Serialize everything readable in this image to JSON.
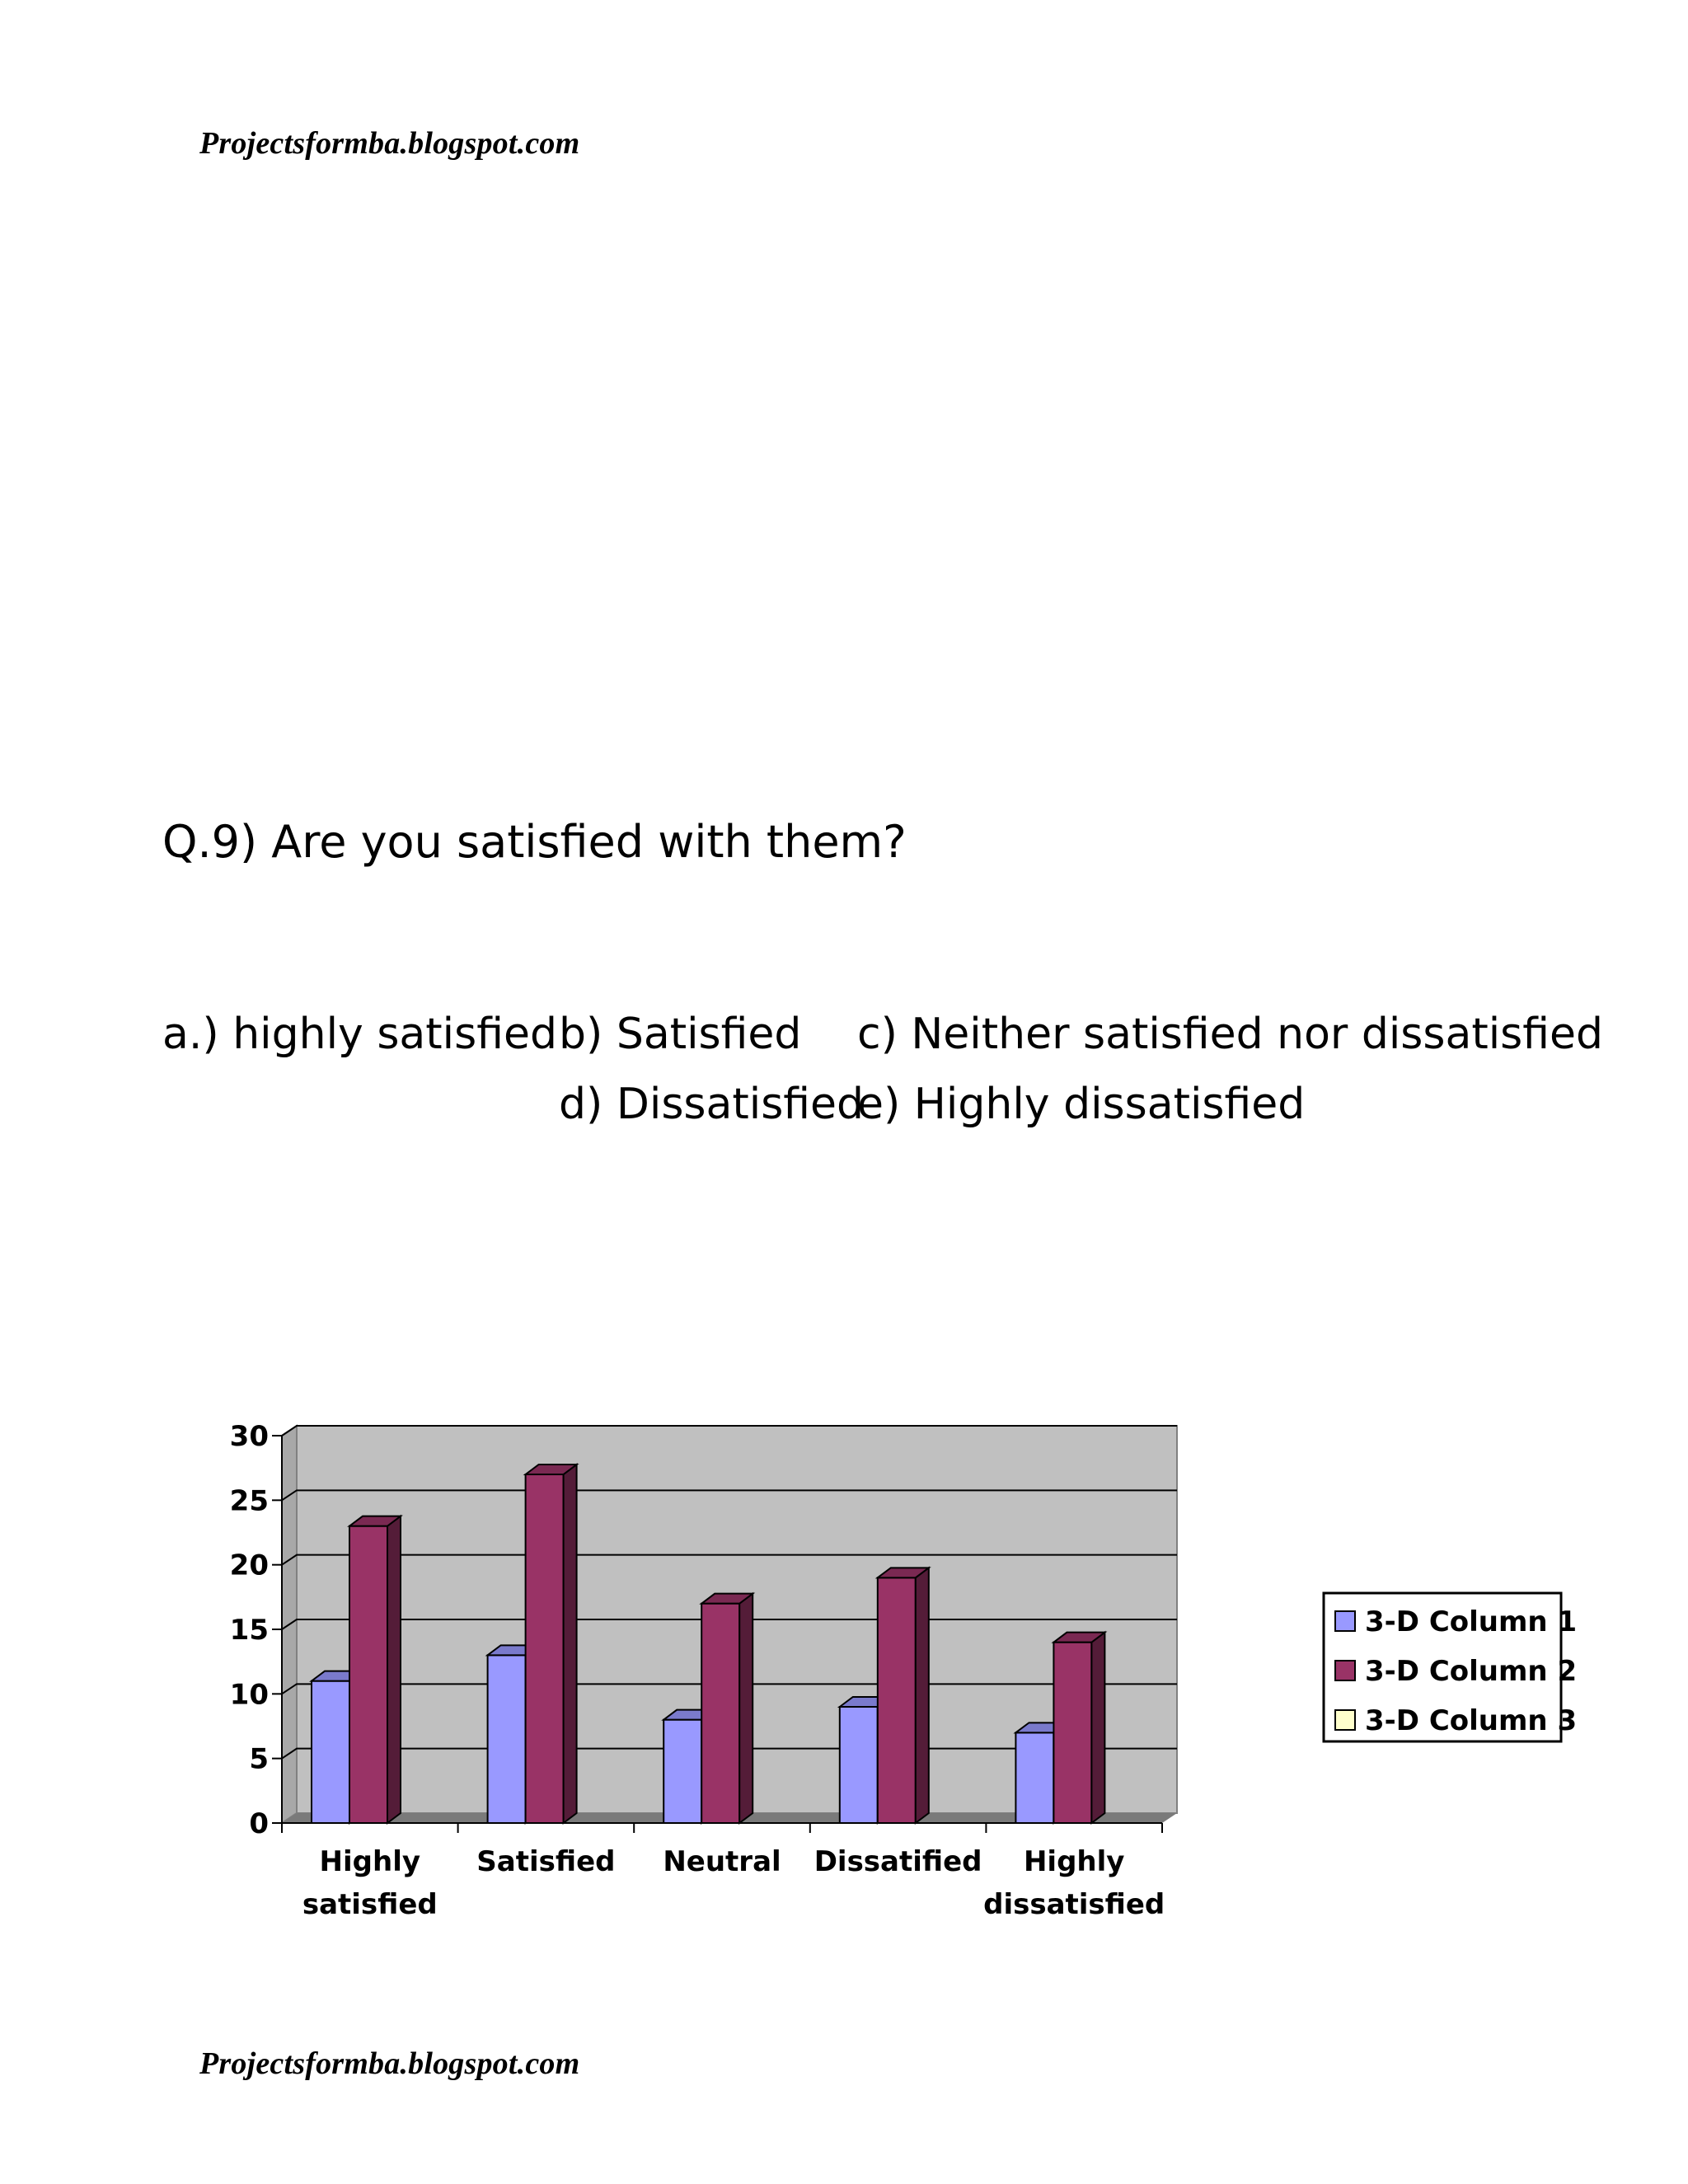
{
  "page": {
    "header": "Projectsformba.blogspot.com",
    "footer": "Projectsformba.blogspot.com",
    "question": "Q.9) Are you satisfied with them?",
    "options": {
      "a": "a.) highly satisfied",
      "b": "b) Satisfied",
      "c": "c) Neither satisfied nor dissatisfied",
      "d": "d) Dissatisfied",
      "e": "e) Highly dissatisfied"
    }
  },
  "chart_data": {
    "type": "bar",
    "categories": [
      [
        "Highly",
        "satisfied"
      ],
      [
        "Satisfied"
      ],
      [
        "Neutral"
      ],
      [
        "Dissatified"
      ],
      [
        "Highly",
        "dissatisfied"
      ]
    ],
    "series": [
      {
        "name": "3-D Column 1",
        "color": "#9999ff",
        "values": [
          11,
          13,
          8,
          9,
          7
        ]
      },
      {
        "name": "3-D Column 2",
        "color": "#993366",
        "values": [
          23,
          27,
          17,
          19,
          14
        ]
      },
      {
        "name": "3-D Column 3",
        "color": "#ffffcc",
        "values": [
          0,
          0,
          0,
          0,
          0
        ]
      }
    ],
    "yticks": [
      "0",
      "5",
      "10",
      "15",
      "20",
      "25",
      "30"
    ],
    "ylim": [
      0,
      30
    ],
    "grid": true,
    "plot_background": "#c0c0c0",
    "legend_position": "right"
  }
}
